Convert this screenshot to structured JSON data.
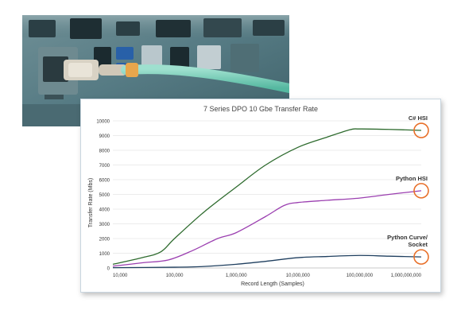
{
  "colors": {
    "csharp": "#2e6b2e",
    "python_hsi": "#9b3fb0",
    "python_socket": "#1f3f5f",
    "marker": "#e8702a",
    "grid": "#d9d9d9"
  },
  "photo": {
    "icon": "network-switch-photo"
  },
  "chart_data": {
    "type": "line",
    "title": "7 Series DPO  10 Gbe Transfer Rate",
    "xlabel": "Record Length  (Samples)",
    "ylabel": "Transfer Rate  (Mbs)",
    "x_scale": "log",
    "xlim": [
      10000,
      1000000000
    ],
    "ylim": [
      0,
      10000
    ],
    "x_ticks": [
      "10,000",
      "100,000",
      "1,000,000",
      "10,000,000",
      "100,000,000",
      "1,000,000,000"
    ],
    "y_ticks": [
      "0",
      "1000",
      "2000",
      "3000",
      "4000",
      "5000",
      "6000",
      "7000",
      "8000",
      "9000",
      "10000"
    ],
    "grid": "horizontal",
    "legend": "inline labels at line ends",
    "series": [
      {
        "name": "C# HSI",
        "color": "#2e6b2e",
        "x": [
          10000,
          30000,
          60000,
          100000,
          300000,
          1000000,
          3000000,
          10000000,
          30000000,
          70000000,
          100000000,
          300000000,
          1000000000
        ],
        "y": [
          250,
          700,
          1100,
          2000,
          3800,
          5500,
          7000,
          8200,
          8900,
          9400,
          9450,
          9420,
          9350
        ]
      },
      {
        "name": "Python HSI",
        "color": "#9b3fb0",
        "x": [
          10000,
          30000,
          80000,
          200000,
          500000,
          1000000,
          3000000,
          6000000,
          10000000,
          30000000,
          100000000,
          300000000,
          1000000000
        ],
        "y": [
          120,
          350,
          550,
          1200,
          2000,
          2400,
          3500,
          4250,
          4450,
          4600,
          4750,
          5000,
          5250
        ]
      },
      {
        "name": "Python Curve/ Socket",
        "color": "#1f3f5f",
        "x": [
          10000,
          100000,
          300000,
          1000000,
          3000000,
          10000000,
          30000000,
          100000000,
          300000000,
          1000000000
        ],
        "y": [
          20,
          50,
          100,
          250,
          450,
          700,
          780,
          850,
          800,
          750
        ]
      }
    ],
    "annotations": [
      {
        "label": "C# HSI",
        "x": 1000000000,
        "y": 9350,
        "marker": "circle"
      },
      {
        "label": "Python HSI",
        "x": 1000000000,
        "y": 5250,
        "marker": "circle"
      },
      {
        "label": "Python Curve/ Socket",
        "x": 1000000000,
        "y": 750,
        "marker": "circle"
      }
    ]
  }
}
